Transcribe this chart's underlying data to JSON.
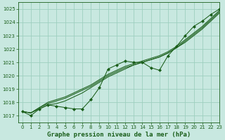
{
  "title": "Graphe pression niveau de la mer (hPa)",
  "bg_color": "#c8e8e0",
  "grid_color": "#9ecfbf",
  "line_color": "#1a5e1a",
  "marker_color": "#1a5e1a",
  "xlim": [
    -0.5,
    23
  ],
  "ylim": [
    1016.5,
    1025.5
  ],
  "yticks": [
    1017,
    1018,
    1019,
    1020,
    1021,
    1022,
    1023,
    1024,
    1025
  ],
  "xticks": [
    0,
    1,
    2,
    3,
    4,
    5,
    6,
    7,
    8,
    9,
    10,
    11,
    12,
    13,
    14,
    15,
    16,
    17,
    18,
    19,
    20,
    21,
    22,
    23
  ],
  "line_main": [
    1017.3,
    1017.0,
    1017.5,
    1017.8,
    1017.7,
    1017.6,
    1017.5,
    1017.5,
    1018.2,
    1019.1,
    1020.5,
    1020.8,
    1021.1,
    1021.0,
    1021.0,
    1020.6,
    1020.4,
    1021.5,
    1022.2,
    1023.0,
    1023.7,
    1024.1,
    1024.6,
    1025.0
  ],
  "line_smooth1": [
    1017.3,
    1017.2,
    1017.5,
    1017.8,
    1017.9,
    1018.1,
    1018.4,
    1018.7,
    1019.1,
    1019.5,
    1019.9,
    1020.2,
    1020.5,
    1020.8,
    1021.0,
    1021.2,
    1021.4,
    1021.7,
    1022.1,
    1022.5,
    1023.0,
    1023.5,
    1024.1,
    1024.7
  ],
  "line_smooth2": [
    1017.3,
    1017.2,
    1017.6,
    1017.9,
    1018.1,
    1018.3,
    1018.6,
    1018.9,
    1019.2,
    1019.6,
    1020.0,
    1020.3,
    1020.6,
    1020.8,
    1021.0,
    1021.2,
    1021.4,
    1021.7,
    1022.1,
    1022.6,
    1023.1,
    1023.6,
    1024.2,
    1024.8
  ],
  "line_smooth3": [
    1017.3,
    1017.2,
    1017.6,
    1018.0,
    1018.2,
    1018.4,
    1018.7,
    1019.0,
    1019.3,
    1019.7,
    1020.1,
    1020.4,
    1020.7,
    1020.9,
    1021.1,
    1021.3,
    1021.5,
    1021.8,
    1022.2,
    1022.7,
    1023.2,
    1023.7,
    1024.3,
    1024.9
  ],
  "title_fontsize": 6.5,
  "tick_fontsize": 5.0
}
